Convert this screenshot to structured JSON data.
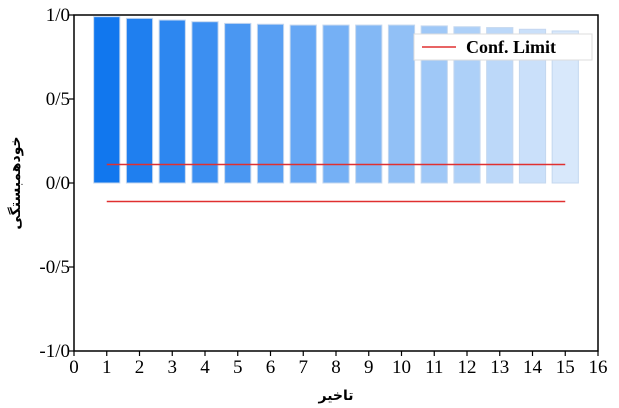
{
  "chart_data": {
    "type": "bar",
    "title": "",
    "xlabel": "تاخیر",
    "ylabel": "خودهمبستگی",
    "x": [
      1,
      2,
      3,
      4,
      5,
      6,
      7,
      8,
      9,
      10,
      11,
      12,
      13,
      14,
      15
    ],
    "values": [
      0.99,
      0.98,
      0.97,
      0.96,
      0.95,
      0.945,
      0.94,
      0.94,
      0.94,
      0.94,
      0.935,
      0.93,
      0.925,
      0.915,
      0.905
    ],
    "xlim": [
      0,
      16
    ],
    "ylim": [
      -1.0,
      1.0
    ],
    "xticks": [
      "0",
      "1",
      "2",
      "3",
      "4",
      "5",
      "6",
      "7",
      "8",
      "9",
      "10",
      "11",
      "12",
      "13",
      "14",
      "15",
      "16"
    ],
    "yticks": [
      {
        "value": 1.0,
        "label": "1/0"
      },
      {
        "value": 0.5,
        "label": "0/5"
      },
      {
        "value": 0.0,
        "label": "0/0"
      },
      {
        "value": -0.5,
        "label": "-0/5"
      },
      {
        "value": -1.0,
        "label": "-1/0"
      }
    ],
    "confidence_limits": {
      "name": "Conf. Limit",
      "upper": 0.11,
      "lower": -0.11,
      "x_range": [
        1,
        15
      ],
      "color": "#e03030"
    },
    "bar_colors": {
      "start": "#1177ee",
      "end": "#d8e8fb",
      "stroke": "#c4d7ef"
    },
    "grid": false,
    "legend": {
      "position": "top-right",
      "entries": [
        "Conf. Limit"
      ]
    }
  }
}
